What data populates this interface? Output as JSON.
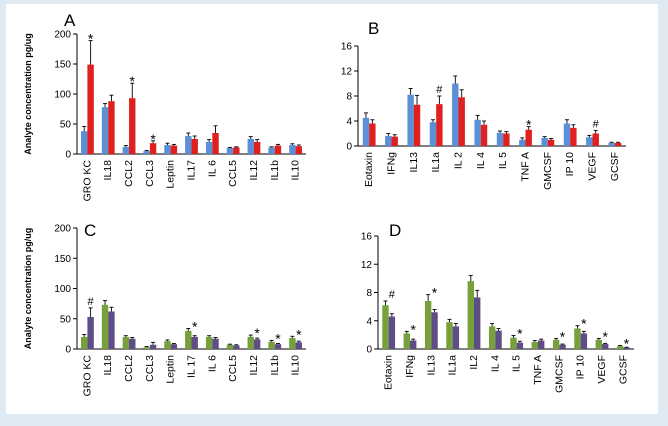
{
  "ylabel": "Analyte concentration pg/ug",
  "colors": {
    "blue": "#5b8fd6",
    "red": "#e01f1f",
    "green": "#76a03a",
    "purple": "#5f4d86",
    "error": "#000000",
    "axis": "#000000"
  },
  "chart_data": [
    {
      "panel": "A",
      "type": "bar",
      "ylim": [
        0,
        200
      ],
      "yticks": [
        0,
        50,
        100,
        150,
        200
      ],
      "ylabel": "Analyte concentration pg/ug",
      "categories": [
        "GRO KC",
        "IL18",
        "CCL2",
        "CCL3",
        "Leptin",
        "IL17",
        "IL 6",
        "CCL5",
        "IL12",
        "IL1b",
        "IL10"
      ],
      "series": [
        {
          "color": "blue",
          "values": [
            38,
            78,
            12,
            5,
            15,
            30,
            20,
            10,
            25,
            11,
            15
          ],
          "errors": [
            8,
            6,
            2,
            1,
            3,
            5,
            4,
            1,
            4,
            1,
            2
          ]
        },
        {
          "color": "red",
          "values": [
            149,
            88,
            93,
            18,
            14,
            25,
            35,
            11,
            20,
            14,
            13
          ],
          "errors": [
            40,
            10,
            25,
            4,
            2,
            5,
            12,
            1,
            4,
            2,
            2
          ]
        }
      ],
      "markers": [
        {
          "index": 0,
          "text": "*"
        },
        {
          "index": 2,
          "text": "*"
        },
        {
          "index": 3,
          "text": "*"
        }
      ]
    },
    {
      "panel": "B",
      "type": "bar",
      "ylim": [
        0,
        16
      ],
      "yticks": [
        0,
        4,
        8,
        12,
        16
      ],
      "ylabel": "",
      "categories": [
        "Eotaxin",
        "IFNg",
        "IL13",
        "IL1a",
        "IL 2",
        "IL 4",
        "IL 5",
        "TNF A",
        "GMCSF",
        "IP 10",
        "VEGF",
        "GCSF"
      ],
      "series": [
        {
          "color": "blue",
          "values": [
            4.5,
            1.6,
            8.2,
            3.8,
            10.0,
            4.2,
            2.1,
            1.0,
            1.3,
            3.6,
            1.4,
            0.5
          ],
          "errors": [
            0.8,
            0.4,
            1.0,
            0.4,
            1.2,
            0.7,
            0.3,
            0.3,
            0.2,
            0.6,
            0.3,
            0.1
          ]
        },
        {
          "color": "red",
          "values": [
            3.6,
            1.5,
            6.6,
            6.7,
            7.8,
            3.4,
            2.0,
            2.6,
            1.0,
            2.9,
            2.0,
            0.5
          ],
          "errors": [
            0.6,
            0.3,
            1.5,
            1.3,
            1.2,
            0.6,
            0.3,
            0.5,
            0.2,
            0.5,
            0.5,
            0.1
          ]
        }
      ],
      "markers": [
        {
          "index": 3,
          "text": "#"
        },
        {
          "index": 7,
          "text": "*"
        },
        {
          "index": 10,
          "text": "#"
        }
      ]
    },
    {
      "panel": "C",
      "type": "bar",
      "ylim": [
        0,
        200
      ],
      "yticks": [
        0,
        50,
        100,
        150,
        200
      ],
      "ylabel": "Analyte concentration pg/ug",
      "categories": [
        "GRO KC",
        "IL18",
        "CCL2",
        "CCL3",
        "Leptin",
        "IL 17",
        "IL 6",
        "CCL5",
        "IL12",
        "IL1b",
        "IL10"
      ],
      "series": [
        {
          "color": "green",
          "values": [
            20,
            73,
            20,
            3,
            13,
            30,
            20,
            7,
            20,
            12,
            18
          ],
          "errors": [
            4,
            7,
            2,
            1,
            2,
            4,
            2,
            1,
            3,
            2,
            3
          ]
        },
        {
          "color": "purple",
          "values": [
            53,
            62,
            17,
            7,
            8,
            20,
            17,
            6,
            16,
            8,
            11
          ],
          "errors": [
            15,
            7,
            2,
            4,
            1,
            2,
            2,
            1,
            2,
            1,
            2
          ]
        }
      ],
      "markers": [
        {
          "index": 0,
          "text": "#"
        },
        {
          "index": 5,
          "text": "*"
        },
        {
          "index": 8,
          "text": "*"
        },
        {
          "index": 9,
          "text": "*"
        },
        {
          "index": 10,
          "text": "*"
        }
      ]
    },
    {
      "panel": "D",
      "type": "bar",
      "ylim": [
        0,
        16
      ],
      "yticks": [
        0,
        4,
        8,
        12,
        16
      ],
      "ylabel": "",
      "categories": [
        "Eotaxin",
        "IFNg",
        "IL13",
        "IL1a",
        "IL2",
        "IL 4",
        "IL 5",
        "TNF A",
        "GMCSF",
        "IP 10",
        "VEGF",
        "GCSF"
      ],
      "series": [
        {
          "color": "green",
          "values": [
            6.2,
            2.2,
            6.8,
            3.8,
            9.6,
            3.2,
            1.6,
            1.0,
            1.3,
            2.9,
            1.3,
            0.4
          ],
          "errors": [
            0.6,
            0.3,
            0.9,
            0.4,
            0.8,
            0.4,
            0.3,
            0.2,
            0.2,
            0.4,
            0.2,
            0.1
          ]
        },
        {
          "color": "purple",
          "values": [
            4.6,
            1.2,
            5.2,
            3.2,
            7.3,
            2.6,
            0.9,
            1.2,
            0.6,
            2.2,
            0.7,
            0.2
          ],
          "errors": [
            0.4,
            0.2,
            0.4,
            0.4,
            1.0,
            0.3,
            0.2,
            0.2,
            0.1,
            0.3,
            0.1,
            0.05
          ]
        }
      ],
      "markers": [
        {
          "index": 0,
          "text": "#"
        },
        {
          "index": 1,
          "text": "*"
        },
        {
          "index": 2,
          "text": "*"
        },
        {
          "index": 6,
          "text": "*"
        },
        {
          "index": 8,
          "text": "*"
        },
        {
          "index": 9,
          "text": "*"
        },
        {
          "index": 10,
          "text": "*"
        },
        {
          "index": 11,
          "text": "*"
        }
      ]
    }
  ]
}
